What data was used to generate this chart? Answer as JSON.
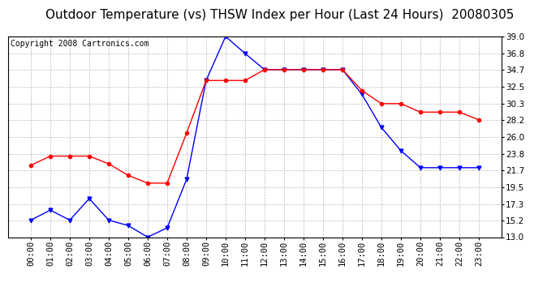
{
  "title": "Outdoor Temperature (vs) THSW Index per Hour (Last 24 Hours)  20080305",
  "copyright": "Copyright 2008 Cartronics.com",
  "hours": [
    "00:00",
    "01:00",
    "02:00",
    "03:00",
    "04:00",
    "05:00",
    "06:00",
    "07:00",
    "08:00",
    "09:00",
    "10:00",
    "11:00",
    "12:00",
    "13:00",
    "14:00",
    "15:00",
    "16:00",
    "17:00",
    "18:00",
    "19:00",
    "20:00",
    "21:00",
    "22:00",
    "23:00"
  ],
  "outdoor_temp": [
    15.2,
    16.5,
    15.2,
    18.0,
    15.2,
    14.5,
    13.0,
    14.2,
    20.5,
    33.3,
    39.0,
    36.8,
    34.7,
    34.7,
    34.7,
    34.7,
    34.7,
    31.5,
    27.2,
    24.2,
    22.0,
    22.0,
    22.0,
    22.0
  ],
  "thsw_index": [
    22.3,
    23.5,
    23.5,
    23.5,
    22.5,
    21.0,
    20.0,
    20.0,
    26.5,
    33.3,
    33.3,
    33.3,
    34.7,
    34.7,
    34.7,
    34.7,
    34.7,
    32.0,
    30.3,
    30.3,
    29.2,
    29.2,
    29.2,
    28.2
  ],
  "temp_color": "#0000ff",
  "thsw_color": "#ff0000",
  "ylim_min": 13.0,
  "ylim_max": 39.0,
  "yticks": [
    13.0,
    15.2,
    17.3,
    19.5,
    21.7,
    23.8,
    26.0,
    28.2,
    30.3,
    32.5,
    34.7,
    36.8,
    39.0
  ],
  "bg_color": "#ffffff",
  "plot_bg_color": "#ffffff",
  "grid_color": "#bbbbbb",
  "title_fontsize": 11,
  "copyright_fontsize": 7,
  "tick_fontsize": 7.5
}
